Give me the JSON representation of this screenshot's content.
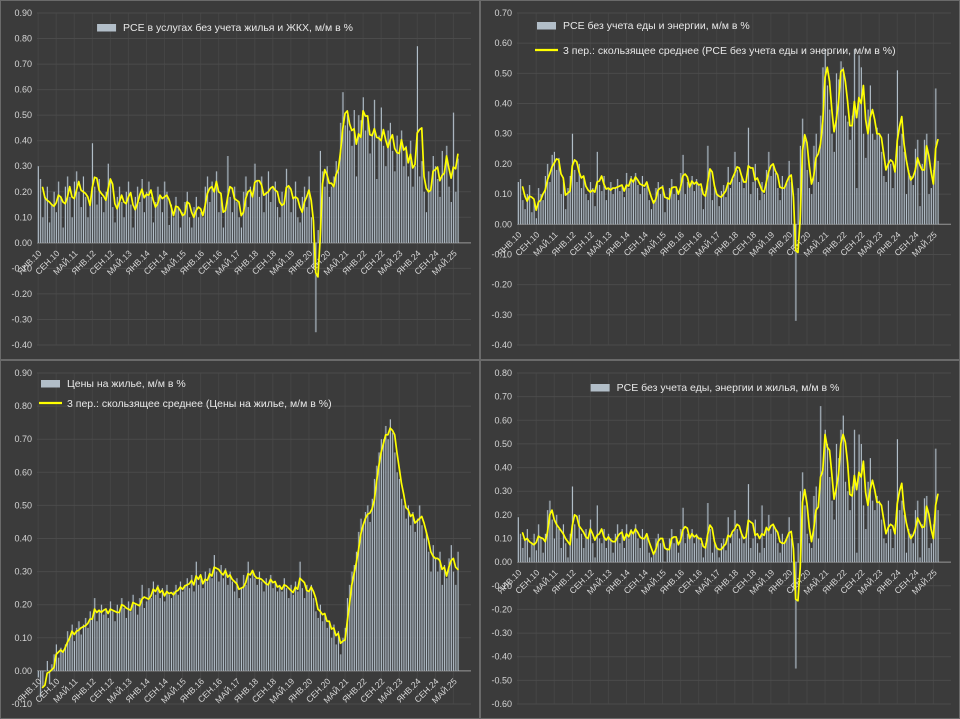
{
  "ui": {
    "colors": {
      "background": "#3b3b3b",
      "panel_border": "rgba(205,205,205,0.32)",
      "grid_horizontal": "#4b4b4b",
      "grid_vertical": "#454545",
      "zero_axis": "#989898",
      "bar_fill": "#b2bec8",
      "bar_edge": "#4d5257",
      "ma_line": "#ffff00",
      "tick_text": "#d6d6d6",
      "legend_text": "#e8e8e8"
    }
  },
  "chart_data": [
    {
      "id": "pce-services-ex-housing-utilities",
      "position": "top-left",
      "type": "bar",
      "title": "PCE в услугах без учета жилья и ЖКХ, м/м в %",
      "legend": {
        "align": "center",
        "dx": -10,
        "rows_y": [
          27
        ],
        "entries": [
          {
            "swatch": "bar",
            "label": "PCE в услугах без учета жилья и ЖКХ, м/м в %"
          }
        ]
      },
      "ylim": [
        -0.4,
        0.9
      ],
      "y_tick_step": 0.1,
      "x_tick_interval": 8,
      "x_tick_labels": [
        "ЯНВ.10",
        "СЕН.10",
        "МАЙ.11",
        "ЯНВ.12",
        "СЕН.12",
        "МАЙ.13",
        "ЯНВ.14",
        "СЕН.14",
        "МАЙ.15",
        "ЯНВ.16",
        "СЕН.16",
        "МАЙ.17",
        "ЯНВ.18",
        "СЕН.18",
        "МАЙ.19",
        "ЯНВ.20",
        "СЕН.20",
        "МАЙ.21",
        "ЯНВ.22",
        "СЕН.22",
        "МАЙ.23",
        "ЯНВ.24",
        "СЕН.24",
        "МАЙ.25"
      ],
      "moving_average": {
        "window": 3,
        "line_visible": true,
        "in_legend": false
      },
      "values": [
        0.3,
        0.25,
        0.1,
        0.18,
        0.22,
        0.08,
        0.15,
        0.2,
        0.12,
        0.24,
        0.18,
        0.06,
        0.22,
        0.26,
        0.18,
        0.1,
        0.24,
        0.28,
        0.2,
        0.14,
        0.26,
        0.18,
        0.1,
        0.16,
        0.39,
        0.22,
        0.15,
        0.25,
        0.18,
        0.12,
        0.2,
        0.31,
        0.24,
        0.14,
        0.08,
        0.18,
        0.22,
        0.16,
        0.1,
        0.2,
        0.24,
        0.15,
        0.06,
        0.18,
        0.22,
        0.16,
        0.25,
        0.12,
        0.2,
        0.24,
        0.18,
        0.08,
        0.16,
        0.22,
        0.18,
        0.12,
        0.24,
        0.2,
        0.07,
        0.15,
        0.1,
        0.18,
        0.14,
        0.06,
        0.12,
        0.16,
        0.2,
        0.1,
        0.06,
        0.14,
        0.18,
        0.1,
        0.12,
        0.1,
        0.22,
        0.26,
        0.16,
        0.24,
        0.2,
        0.28,
        0.12,
        0.18,
        0.06,
        0.14,
        0.34,
        0.18,
        0.12,
        0.22,
        0.16,
        0.1,
        0.06,
        0.2,
        0.26,
        0.14,
        0.22,
        0.18,
        0.31,
        0.24,
        0.18,
        0.26,
        0.12,
        0.2,
        0.28,
        0.16,
        0.22,
        0.24,
        0.14,
        0.1,
        0.2,
        0.16,
        0.29,
        0.22,
        0.12,
        0.18,
        0.24,
        0.1,
        0.08,
        0.18,
        0.22,
        0.14,
        0.26,
        0.1,
        -0.1,
        -0.35,
        0.05,
        0.36,
        0.28,
        0.22,
        0.3,
        0.18,
        0.22,
        0.26,
        0.32,
        0.28,
        0.47,
        0.59,
        0.46,
        0.5,
        0.44,
        0.38,
        0.52,
        0.26,
        0.5,
        0.48,
        0.57,
        0.44,
        0.48,
        0.35,
        0.43,
        0.56,
        0.25,
        0.42,
        0.53,
        0.38,
        0.3,
        0.44,
        0.47,
        0.36,
        0.28,
        0.42,
        0.35,
        0.44,
        0.3,
        0.38,
        0.26,
        0.4,
        0.22,
        0.3,
        0.77,
        0.26,
        0.32,
        0.2,
        0.12,
        0.28,
        0.22,
        0.34,
        0.3,
        0.25,
        0.18,
        0.36,
        0.28,
        0.38,
        0.22,
        0.16,
        0.51,
        0.2,
        0.33
      ]
    },
    {
      "id": "pce-ex-food-energy",
      "position": "top-right",
      "type": "bar",
      "title": "PCE без учета еды и энергии, м/м в %",
      "legend": {
        "align": "left",
        "x": 56,
        "rows_y": [
          25,
          50
        ],
        "entries": [
          {
            "swatch": "bar",
            "label": "PCE без учета еды и энергии, м/м в %"
          },
          {
            "swatch": "line",
            "label": "3 пер.: скользящее среднее (PCE без учета еды и энергии, м/м в %)"
          }
        ]
      },
      "ylim": [
        -0.4,
        0.7
      ],
      "y_tick_step": 0.1,
      "x_tick_interval": 8,
      "x_tick_labels": [
        "ЯНВ.10",
        "СЕН.10",
        "МАЙ.11",
        "ЯНВ.12",
        "СЕН.12",
        "МАЙ.13",
        "ЯНВ.14",
        "СЕН.14",
        "МАЙ.15",
        "ЯНВ.16",
        "СЕН.16",
        "МАЙ.17",
        "ЯНВ.18",
        "СЕН.18",
        "МАЙ.19",
        "ЯНВ.20",
        "СЕН.20",
        "МАЙ.21",
        "ЯНВ.22",
        "СЕН.22",
        "МАЙ.23",
        "ЯНВ.24",
        "СЕН.24",
        "МАЙ.25"
      ],
      "moving_average": {
        "window": 3,
        "line_visible": true,
        "in_legend": true
      },
      "values": [
        0.14,
        0.15,
        0.08,
        0.05,
        0.1,
        0.13,
        0.04,
        0.08,
        0.02,
        0.12,
        0.1,
        0.08,
        0.16,
        0.2,
        0.14,
        0.23,
        0.24,
        0.18,
        0.22,
        0.1,
        0.14,
        0.05,
        0.12,
        0.16,
        0.3,
        0.18,
        0.14,
        0.2,
        0.12,
        0.16,
        0.1,
        0.08,
        0.14,
        0.12,
        0.06,
        0.24,
        0.13,
        0.11,
        0.16,
        0.08,
        0.12,
        0.14,
        0.1,
        0.12,
        0.15,
        0.11,
        0.13,
        0.09,
        0.17,
        0.12,
        0.16,
        0.14,
        0.17,
        0.13,
        0.1,
        0.16,
        0.12,
        0.14,
        0.08,
        0.05,
        0.08,
        0.12,
        0.14,
        0.1,
        0.13,
        0.04,
        0.09,
        0.12,
        0.15,
        0.1,
        0.12,
        0.08,
        0.17,
        0.23,
        0.1,
        0.14,
        0.13,
        0.16,
        0.11,
        0.15,
        0.13,
        0.12,
        0.05,
        0.11,
        0.26,
        0.18,
        0.08,
        0.12,
        0.1,
        0.06,
        0.11,
        0.13,
        0.09,
        0.19,
        0.12,
        0.15,
        0.24,
        0.18,
        0.14,
        0.16,
        0.12,
        0.14,
        0.32,
        0.1,
        0.14,
        0.2,
        0.12,
        0.08,
        0.14,
        0.1,
        0.18,
        0.24,
        0.16,
        0.2,
        0.17,
        0.12,
        0.08,
        0.16,
        0.12,
        0.14,
        0.21,
        0.14,
        -0.08,
        -0.32,
        0.12,
        0.26,
        0.35,
        0.28,
        0.18,
        0.12,
        0.1,
        0.26,
        0.3,
        0.14,
        0.36,
        0.52,
        0.58,
        0.46,
        0.38,
        0.3,
        0.24,
        0.5,
        0.48,
        0.54,
        0.52,
        0.36,
        0.34,
        0.28,
        0.36,
        0.58,
        0.12,
        0.56,
        0.52,
        0.3,
        0.22,
        0.38,
        0.46,
        0.3,
        0.28,
        0.32,
        0.3,
        0.24,
        0.16,
        0.14,
        0.3,
        0.2,
        0.12,
        0.2,
        0.51,
        0.26,
        0.3,
        0.24,
        0.1,
        0.18,
        0.16,
        0.13,
        0.25,
        0.28,
        0.06,
        0.2,
        0.28,
        0.3,
        0.1,
        0.12,
        0.18,
        0.45,
        0.21
      ]
    },
    {
      "id": "housing-prices",
      "position": "bottom-left",
      "type": "bar",
      "title": "Цены на жилье, м/м в %",
      "legend": {
        "align": "left",
        "x": 40,
        "rows_y": [
          23,
          43
        ],
        "entries": [
          {
            "swatch": "bar",
            "label": "Цены на жилье, м/м в %"
          },
          {
            "swatch": "line",
            "label": "3 пер.: скользящее среднее (Цены на жилье, м/м в %)"
          }
        ]
      },
      "ylim": [
        -0.1,
        0.9
      ],
      "y_tick_step": 0.1,
      "x_tick_interval": 8,
      "x_tick_labels": [
        "ЯНВ.10",
        "СЕН.10",
        "МАЙ.11",
        "ЯНВ.12",
        "СЕН.12",
        "МАЙ.13",
        "ЯНВ.14",
        "СЕН.14",
        "МАЙ.15",
        "ЯНВ.16",
        "СЕН.16",
        "МАЙ.17",
        "ЯНВ.18",
        "СЕН.18",
        "МАЙ.19",
        "ЯНВ.20",
        "СЕН.20",
        "МАЙ.21",
        "ЯНВ.22",
        "СЕН.22",
        "МАЙ.23",
        "ЯНВ.24",
        "СЕН.24",
        "МАЙ.25"
      ],
      "moving_average": {
        "window": 3,
        "line_visible": true,
        "in_legend": true
      },
      "values": [
        -0.02,
        -0.08,
        -0.05,
        0.0,
        0.03,
        -0.04,
        0.02,
        0.05,
        0.08,
        0.04,
        0.07,
        0.06,
        0.08,
        0.12,
        0.1,
        0.14,
        0.09,
        0.13,
        0.15,
        0.11,
        0.14,
        0.16,
        0.13,
        0.18,
        0.16,
        0.22,
        0.15,
        0.18,
        0.2,
        0.17,
        0.19,
        0.16,
        0.21,
        0.18,
        0.15,
        0.2,
        0.18,
        0.22,
        0.19,
        0.16,
        0.21,
        0.18,
        0.23,
        0.2,
        0.17,
        0.22,
        0.26,
        0.19,
        0.21,
        0.25,
        0.22,
        0.27,
        0.23,
        0.26,
        0.22,
        0.25,
        0.21,
        0.26,
        0.23,
        0.22,
        0.24,
        0.26,
        0.23,
        0.27,
        0.24,
        0.26,
        0.28,
        0.25,
        0.29,
        0.24,
        0.33,
        0.26,
        0.28,
        0.25,
        0.3,
        0.27,
        0.31,
        0.28,
        0.35,
        0.3,
        0.27,
        0.32,
        0.28,
        0.31,
        0.26,
        0.3,
        0.27,
        0.24,
        0.28,
        0.22,
        0.25,
        0.29,
        0.26,
        0.33,
        0.28,
        0.3,
        0.28,
        0.26,
        0.3,
        0.27,
        0.24,
        0.28,
        0.26,
        0.29,
        0.25,
        0.27,
        0.24,
        0.26,
        0.24,
        0.28,
        0.25,
        0.22,
        0.26,
        0.23,
        0.27,
        0.24,
        0.33,
        0.25,
        0.22,
        0.26,
        0.24,
        0.26,
        0.22,
        0.18,
        0.16,
        0.2,
        0.15,
        0.17,
        0.13,
        0.15,
        0.1,
        0.14,
        0.08,
        0.12,
        0.05,
        0.1,
        0.13,
        0.22,
        0.26,
        0.3,
        0.32,
        0.36,
        0.42,
        0.46,
        0.44,
        0.48,
        0.5,
        0.45,
        0.52,
        0.58,
        0.62,
        0.66,
        0.7,
        0.7,
        0.74,
        0.7,
        0.76,
        0.72,
        0.66,
        0.6,
        0.58,
        0.52,
        0.5,
        0.46,
        0.5,
        0.44,
        0.48,
        0.42,
        0.46,
        0.5,
        0.44,
        0.4,
        0.42,
        0.36,
        0.3,
        0.38,
        0.34,
        0.3,
        0.36,
        0.26,
        0.32,
        0.28,
        0.34,
        0.38,
        0.3,
        0.26,
        0.36
      ]
    },
    {
      "id": "pce-ex-food-energy-housing",
      "position": "bottom-right",
      "type": "bar",
      "title": "PCE без учета еды, энергии и жилья, м/м в %",
      "legend": {
        "align": "center",
        "dx": 0,
        "rows_y": [
          27
        ],
        "entries": [
          {
            "swatch": "bar",
            "label": "PCE без учета еды, энергии и жилья, м/м в %"
          }
        ]
      },
      "ylim": [
        -0.6,
        0.8
      ],
      "y_tick_step": 0.1,
      "x_tick_interval": 8,
      "x_tick_labels": [
        "ЯНВ.10",
        "СЕН.10",
        "МАЙ.11",
        "ЯНВ.12",
        "СЕН.12",
        "МАЙ.13",
        "ЯНВ.14",
        "СЕН.14",
        "МАЙ.15",
        "ЯНВ.16",
        "СЕН.16",
        "МАЙ.17",
        "ЯНВ.18",
        "СЕН.18",
        "МАЙ.19",
        "ЯНВ.20",
        "СЕН.20",
        "МАЙ.21",
        "ЯНВ.22",
        "СЕН.22",
        "МАЙ.23",
        "ЯНВ.24",
        "СЕН.24",
        "МАЙ.25"
      ],
      "moving_average": {
        "window": 3,
        "line_visible": true,
        "in_legend": false
      },
      "values": [
        0.19,
        0.12,
        0.06,
        0.1,
        0.14,
        0.02,
        0.08,
        0.12,
        0.05,
        0.16,
        0.1,
        0.04,
        0.12,
        0.22,
        0.26,
        0.18,
        0.1,
        0.2,
        0.14,
        0.06,
        0.16,
        0.08,
        0.02,
        0.12,
        0.32,
        0.16,
        0.1,
        0.2,
        0.12,
        0.06,
        0.14,
        0.1,
        0.18,
        0.08,
        0.02,
        0.24,
        0.1,
        0.08,
        0.14,
        0.06,
        0.12,
        0.1,
        0.04,
        0.12,
        0.16,
        0.08,
        0.14,
        0.06,
        0.16,
        0.1,
        0.14,
        0.12,
        0.16,
        0.1,
        0.06,
        0.14,
        0.1,
        0.12,
        0.04,
        0.02,
        0.04,
        0.1,
        0.12,
        0.08,
        0.1,
        0.0,
        0.06,
        0.1,
        0.14,
        0.08,
        0.1,
        0.04,
        0.14,
        0.23,
        0.08,
        0.12,
        0.1,
        0.14,
        0.08,
        0.12,
        0.1,
        0.08,
        0.02,
        0.08,
        0.25,
        0.14,
        0.04,
        0.08,
        0.06,
        0.02,
        0.08,
        0.1,
        0.05,
        0.19,
        0.08,
        0.12,
        0.22,
        0.14,
        0.1,
        0.12,
        0.08,
        0.12,
        0.33,
        0.06,
        0.1,
        0.18,
        0.08,
        0.04,
        0.24,
        0.06,
        0.14,
        0.2,
        0.12,
        0.16,
        0.14,
        0.08,
        0.04,
        0.12,
        0.08,
        0.1,
        0.19,
        0.1,
        -0.12,
        -0.45,
        0.08,
        0.3,
        0.38,
        0.24,
        0.12,
        0.08,
        0.06,
        0.28,
        0.32,
        0.1,
        0.66,
        0.4,
        0.56,
        0.5,
        0.36,
        0.26,
        0.18,
        0.5,
        0.44,
        0.56,
        0.62,
        0.34,
        0.3,
        0.22,
        0.32,
        0.56,
        0.04,
        0.54,
        0.5,
        0.24,
        0.14,
        0.34,
        0.44,
        0.26,
        0.22,
        0.28,
        0.26,
        0.18,
        0.1,
        0.08,
        0.26,
        0.14,
        0.06,
        0.16,
        0.52,
        0.22,
        0.26,
        0.2,
        0.04,
        0.14,
        0.12,
        0.08,
        0.22,
        0.26,
        0.02,
        0.16,
        0.27,
        0.28,
        0.06,
        0.08,
        0.16,
        0.48,
        0.22
      ]
    }
  ]
}
